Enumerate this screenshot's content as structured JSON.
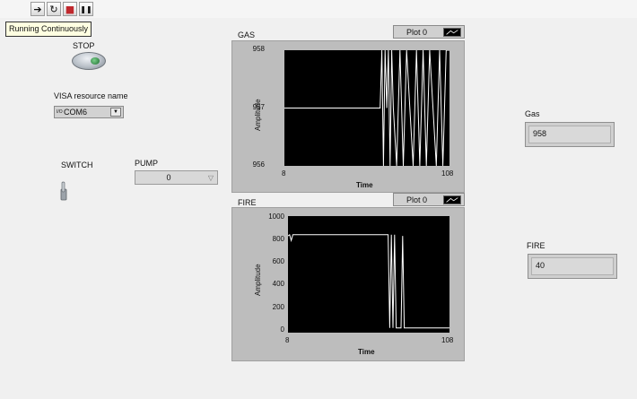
{
  "toolbar": {
    "buttons": [
      {
        "name": "run-arrow-icon",
        "glyph": "➔"
      },
      {
        "name": "run-continuously-icon",
        "glyph": "↻"
      },
      {
        "name": "abort-icon",
        "glyph": "■"
      },
      {
        "name": "pause-icon",
        "glyph": "❚❚"
      }
    ],
    "tooltip": "Running Continuously"
  },
  "stop": {
    "label": "STOP"
  },
  "visa": {
    "label": "VISA resource name",
    "value": "COM6",
    "icon": "I/O"
  },
  "switch": {
    "label": "SWITCH"
  },
  "pump": {
    "label": "PUMP",
    "value": "0"
  },
  "gas_chart": {
    "title": "GAS",
    "legend": "Plot 0",
    "ylabel": "Amplitude",
    "xlabel": "Time",
    "yticks": [
      "958",
      "957",
      "956"
    ],
    "xticks": [
      "8",
      "108"
    ]
  },
  "fire_chart": {
    "title": "FIRE",
    "legend": "Plot 0",
    "ylabel": "Amplitude",
    "xlabel": "Time",
    "yticks": [
      "1000",
      "800",
      "600",
      "400",
      "200",
      "0"
    ],
    "xticks": [
      "8",
      "108"
    ]
  },
  "gas_indicator": {
    "label": "Gas",
    "value": "958"
  },
  "fire_indicator": {
    "label": "FIRE",
    "value": "40"
  },
  "chart_data": [
    {
      "type": "line",
      "title": "GAS",
      "xlabel": "Time",
      "ylabel": "Amplitude",
      "xlim": [
        8,
        108
      ],
      "ylim": [
        956,
        958
      ],
      "series": [
        {
          "x": [
            8,
            66,
            67,
            68,
            69,
            70,
            71,
            72,
            73,
            74,
            76,
            78,
            80,
            82,
            84,
            86,
            88,
            90,
            92,
            94,
            96,
            98,
            100,
            102,
            104,
            106,
            108
          ],
          "values": [
            957,
            957,
            958,
            956,
            958,
            957,
            958,
            956,
            958,
            957,
            956,
            958,
            956,
            958,
            957,
            956,
            958,
            956,
            958,
            956,
            958,
            957,
            956,
            958,
            956,
            958,
            958
          ]
        }
      ]
    },
    {
      "type": "line",
      "title": "FIRE",
      "xlabel": "Time",
      "ylabel": "Amplitude",
      "xlim": [
        8,
        108
      ],
      "ylim": [
        0,
        1000
      ],
      "series": [
        {
          "x": [
            8,
            9,
            10,
            11,
            12,
            70,
            71,
            72,
            73,
            74,
            75,
            76,
            77,
            78,
            79,
            80,
            81,
            82,
            84,
            86,
            88,
            108
          ],
          "values": [
            830,
            840,
            790,
            840,
            840,
            840,
            40,
            840,
            40,
            840,
            40,
            40,
            40,
            40,
            830,
            40,
            40,
            40,
            40,
            40,
            40,
            40
          ]
        }
      ]
    }
  ]
}
